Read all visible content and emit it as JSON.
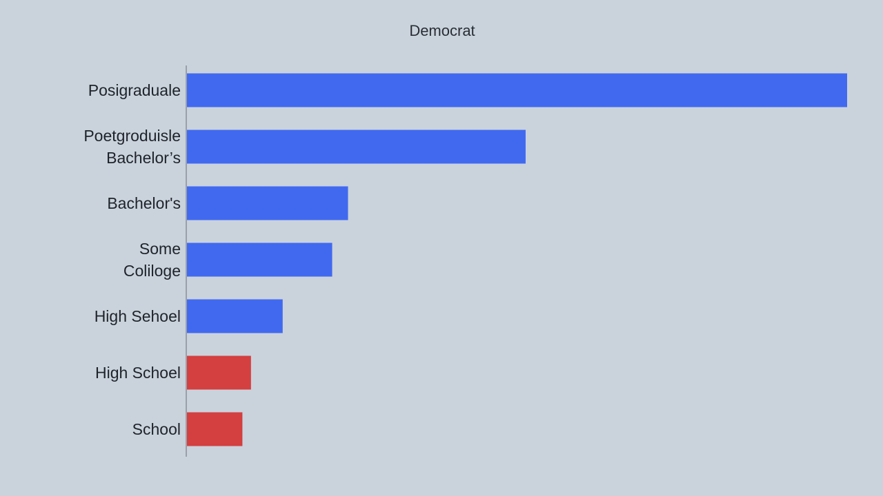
{
  "chart_data": {
    "type": "bar",
    "orientation": "horizontal",
    "title": "Democrat",
    "xlabel": "",
    "ylabel": "",
    "xlim": [
      0,
      100
    ],
    "grid": false,
    "legend": "none",
    "categories": [
      [
        "Posigraduale"
      ],
      [
        "Poetgroduisle",
        "Bachelor’s"
      ],
      [
        "Bachelor's"
      ],
      [
        "Some",
        "Coliloge"
      ],
      [
        "High  Sehoel"
      ],
      [
        "High Schoel"
      ],
      [
        "School"
      ]
    ],
    "values": [
      100,
      51.3,
      24.4,
      22.0,
      14.5,
      9.7,
      8.4
    ],
    "colors": [
      "#4169f0",
      "#4169f0",
      "#4169f0",
      "#4169f0",
      "#4169f0",
      "#d43f3f",
      "#d43f3f"
    ]
  }
}
